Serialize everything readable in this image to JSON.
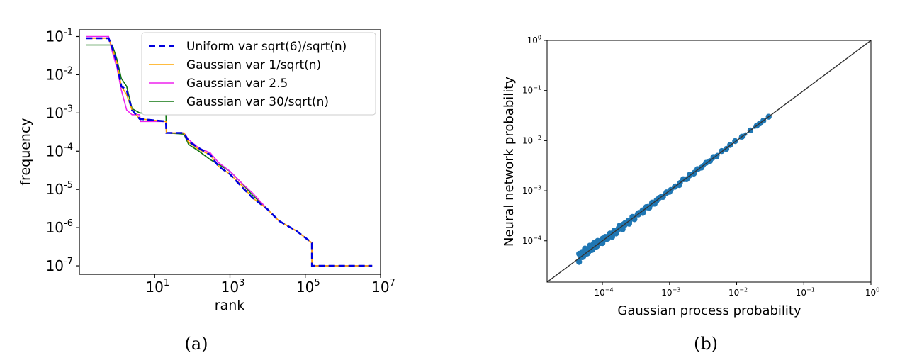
{
  "chart_data": [
    {
      "type": "line",
      "caption": "(a)",
      "xlabel": "rank",
      "ylabel": "frequency",
      "xscale": "log",
      "yscale": "log",
      "xlim": [
        0.1,
        10000000
      ],
      "ylim": [
        6e-08,
        0.15
      ],
      "xticks": [
        {
          "value": 10,
          "base": "10",
          "exp": "1"
        },
        {
          "value": 1000,
          "base": "10",
          "exp": "3"
        },
        {
          "value": 100000,
          "base": "10",
          "exp": "5"
        },
        {
          "value": 10000000,
          "base": "10",
          "exp": "7"
        }
      ],
      "yticks": [
        {
          "value": 0.1,
          "base": "10",
          "exp": "-1"
        },
        {
          "value": 0.01,
          "base": "10",
          "exp": "-2"
        },
        {
          "value": 0.001,
          "base": "10",
          "exp": "-3"
        },
        {
          "value": 0.0001,
          "base": "10",
          "exp": "-4"
        },
        {
          "value": 1e-05,
          "base": "10",
          "exp": "-5"
        },
        {
          "value": 1e-06,
          "base": "10",
          "exp": "-6"
        },
        {
          "value": 1e-07,
          "base": "10",
          "exp": "-7"
        }
      ],
      "legend_position": "top-right",
      "series": [
        {
          "name": "Uniform var sqrt(6)/sqrt(n)",
          "color": "#0000dd",
          "style": "dashed",
          "points": [
            [
              0.15,
              0.09
            ],
            [
              0.6,
              0.09
            ],
            [
              0.75,
              0.05
            ],
            [
              1,
              0.02
            ],
            [
              1.3,
              0.005
            ],
            [
              1.8,
              0.004
            ],
            [
              2.5,
              0.0012
            ],
            [
              4,
              0.0007
            ],
            [
              20,
              0.0006
            ],
            [
              20.5,
              0.0003
            ],
            [
              60,
              0.0003
            ],
            [
              80,
              0.00018
            ],
            [
              150,
              0.00012
            ],
            [
              300,
              8e-05
            ],
            [
              500,
              4e-05
            ],
            [
              1000,
              2.5e-05
            ],
            [
              2000,
              1.2e-05
            ],
            [
              4000,
              6e-06
            ],
            [
              10000,
              3e-06
            ],
            [
              20000,
              1.5e-06
            ],
            [
              60000,
              8e-07
            ],
            [
              150000,
              4e-07
            ],
            [
              150500,
              1e-07
            ],
            [
              6000000,
              1e-07
            ]
          ]
        },
        {
          "name": "Gaussian var 1/sqrt(n)",
          "color": "#ffa500",
          "style": "solid",
          "points": [
            [
              0.15,
              0.09
            ],
            [
              0.6,
              0.09
            ],
            [
              0.75,
              0.05
            ],
            [
              1,
              0.02
            ],
            [
              1.3,
              0.005
            ],
            [
              1.8,
              0.003
            ],
            [
              2.5,
              0.0012
            ],
            [
              4,
              0.0007
            ],
            [
              20,
              0.0006
            ],
            [
              20.5,
              0.0003
            ],
            [
              60,
              0.0003
            ],
            [
              80,
              0.00017
            ],
            [
              150,
              0.00011
            ],
            [
              300,
              8e-05
            ],
            [
              500,
              4e-05
            ],
            [
              1000,
              2.5e-05
            ],
            [
              2000,
              1.3e-05
            ],
            [
              4000,
              6e-06
            ],
            [
              10000,
              3e-06
            ],
            [
              20000,
              1.5e-06
            ],
            [
              60000,
              8e-07
            ],
            [
              150000,
              4e-07
            ],
            [
              150500,
              1e-07
            ],
            [
              6000000,
              1e-07
            ]
          ]
        },
        {
          "name": "Gaussian var 2.5",
          "color": "#ee22ee",
          "style": "solid",
          "points": [
            [
              0.15,
              0.1
            ],
            [
              0.6,
              0.1
            ],
            [
              0.75,
              0.04
            ],
            [
              1,
              0.015
            ],
            [
              1.3,
              0.004
            ],
            [
              1.8,
              0.0012
            ],
            [
              2.5,
              0.0009
            ],
            [
              4,
              0.0009
            ],
            [
              4.2,
              0.0006
            ],
            [
              20,
              0.0006
            ],
            [
              20.5,
              0.0003
            ],
            [
              60,
              0.0003
            ],
            [
              80,
              0.0002
            ],
            [
              150,
              0.00012
            ],
            [
              300,
              9e-05
            ],
            [
              500,
              5e-05
            ],
            [
              1000,
              3e-05
            ],
            [
              2000,
              1.5e-05
            ],
            [
              4000,
              8e-06
            ],
            [
              10000,
              3e-06
            ],
            [
              20000,
              1.5e-06
            ],
            [
              60000,
              8e-07
            ],
            [
              150000,
              4e-07
            ],
            [
              150500,
              1e-07
            ],
            [
              6000000,
              1e-07
            ]
          ]
        },
        {
          "name": "Gaussian var 30/sqrt(n)",
          "color": "#117711",
          "style": "solid",
          "points": [
            [
              0.15,
              0.06
            ],
            [
              0.6,
              0.06
            ],
            [
              0.75,
              0.06
            ],
            [
              1,
              0.025
            ],
            [
              1.3,
              0.008
            ],
            [
              1.8,
              0.005
            ],
            [
              2.5,
              0.0013
            ],
            [
              4,
              0.001
            ],
            [
              20,
              0.0009
            ],
            [
              20.5,
              0.0003
            ],
            [
              60,
              0.00028
            ],
            [
              80,
              0.00015
            ],
            [
              150,
              0.0001
            ],
            [
              300,
              6e-05
            ],
            [
              500,
              4.5e-05
            ],
            [
              1000,
              3e-05
            ],
            [
              2000,
              1.5e-05
            ],
            [
              4000,
              7e-06
            ],
            [
              10000,
              3e-06
            ],
            [
              20000,
              1.5e-06
            ],
            [
              60000,
              8e-07
            ],
            [
              150000,
              4e-07
            ],
            [
              150500,
              1e-07
            ],
            [
              6000000,
              1e-07
            ]
          ]
        }
      ]
    },
    {
      "type": "scatter",
      "caption": "(b)",
      "xlabel": "Gaussian process probability",
      "ylabel": "Neural network probability",
      "xscale": "log",
      "yscale": "log",
      "xlim": [
        1.5e-05,
        1
      ],
      "ylim": [
        1.5e-05,
        1
      ],
      "xticks": [
        {
          "value": 0.0001,
          "base": "10",
          "exp": "−4"
        },
        {
          "value": 0.001,
          "base": "10",
          "exp": "−3"
        },
        {
          "value": 0.01,
          "base": "10",
          "exp": "−2"
        },
        {
          "value": 0.1,
          "base": "10",
          "exp": "−1"
        },
        {
          "value": 1,
          "base": "10",
          "exp": "0"
        }
      ],
      "yticks": [
        {
          "value": 0.0001,
          "base": "10",
          "exp": "−4"
        },
        {
          "value": 0.001,
          "base": "10",
          "exp": "−3"
        },
        {
          "value": 0.01,
          "base": "10",
          "exp": "−2"
        },
        {
          "value": 0.1,
          "base": "10",
          "exp": "−1"
        },
        {
          "value": 1,
          "base": "10",
          "exp": "0"
        }
      ],
      "diagonal": true,
      "point_color": "#1f77b4",
      "points": [
        [
          4.5e-05,
          3.8e-05
        ],
        [
          4.5e-05,
          5.5e-05
        ],
        [
          5e-05,
          6e-05
        ],
        [
          5.5e-05,
          7e-05
        ],
        [
          6e-05,
          6.5e-05
        ],
        [
          6.5e-05,
          8e-05
        ],
        [
          7e-05,
          7.5e-05
        ],
        [
          7.5e-05,
          9e-05
        ],
        [
          8e-05,
          8e-05
        ],
        [
          8.5e-05,
          0.0001
        ],
        [
          9e-05,
          9e-05
        ],
        [
          0.0001,
          0.00011
        ],
        [
          0.0001,
          9e-05
        ],
        [
          0.00011,
          0.00012
        ],
        [
          0.00012,
          0.00011
        ],
        [
          0.00013,
          0.00014
        ],
        [
          0.00014,
          0.00012
        ],
        [
          0.00015,
          0.00016
        ],
        [
          0.00016,
          0.00014
        ],
        [
          0.00018,
          0.0002
        ],
        [
          0.0002,
          0.00017
        ],
        [
          0.00022,
          0.00023
        ],
        [
          0.00025,
          0.00022
        ],
        [
          0.00028,
          0.0003
        ],
        [
          0.0003,
          0.00027
        ],
        [
          0.00035,
          0.00036
        ],
        [
          0.0004,
          0.00036
        ],
        [
          0.00045,
          0.00047
        ],
        [
          0.0005,
          0.00046
        ],
        [
          0.00055,
          0.00058
        ],
        [
          0.0006,
          0.00055
        ],
        [
          0.0007,
          0.00072
        ],
        [
          0.0008,
          0.00075
        ],
        [
          0.0009,
          0.00093
        ],
        [
          0.001,
          0.00095
        ],
        [
          0.0012,
          0.0012
        ],
        [
          0.0014,
          0.0013
        ],
        [
          0.0016,
          0.0017
        ],
        [
          0.0018,
          0.0017
        ],
        [
          0.002,
          0.0021
        ],
        [
          0.0023,
          0.0022
        ],
        [
          0.0026,
          0.0027
        ],
        [
          0.003,
          0.0029
        ],
        [
          0.0035,
          0.0036
        ],
        [
          0.004,
          0.0039
        ],
        [
          0.0045,
          0.0047
        ],
        [
          0.005,
          0.0048
        ],
        [
          0.006,
          0.0062
        ],
        [
          0.007,
          0.0068
        ],
        [
          0.008,
          0.0082
        ],
        [
          0.0095,
          0.0098
        ],
        [
          0.012,
          0.012
        ],
        [
          0.016,
          0.016
        ],
        [
          0.02,
          0.02
        ],
        [
          0.022,
          0.022
        ],
        [
          0.025,
          0.025
        ],
        [
          0.03,
          0.03
        ]
      ]
    }
  ]
}
